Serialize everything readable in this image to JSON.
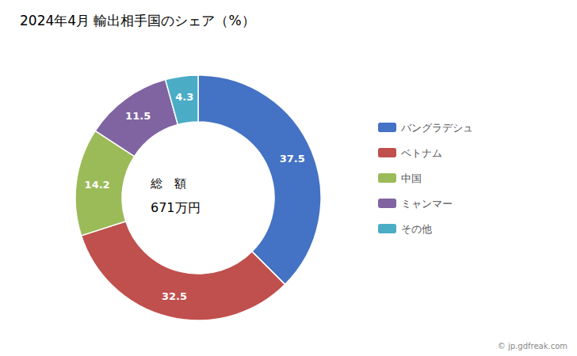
{
  "chart_data": {
    "type": "pie",
    "title": "2024年4月 輸出相手国のシェア（%）",
    "categories": [
      "バングラデシュ",
      "ベトナム",
      "中国",
      "ミャンマー",
      "その他"
    ],
    "values": [
      37.5,
      32.5,
      14.2,
      11.5,
      4.3
    ],
    "colors": [
      "#4472C4",
      "#C0504D",
      "#9BBB59",
      "#8064A2",
      "#4BACC6"
    ],
    "data_labels": true,
    "legend": "right",
    "annotations": [
      "総　額",
      "671万円",
      "© jp.gdfreak.com"
    ]
  }
}
